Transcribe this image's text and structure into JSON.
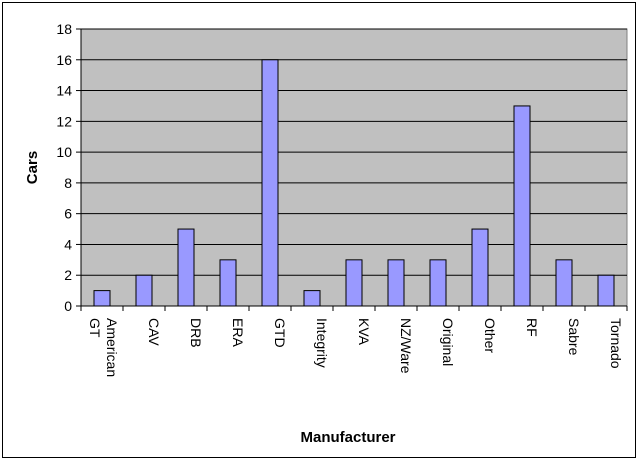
{
  "chart_data": {
    "type": "bar",
    "title": "",
    "xlabel": "Manufacturer",
    "ylabel": "Cars",
    "categories": [
      "American GT",
      "CAV",
      "DRB",
      "ERA",
      "GTD",
      "Integrity",
      "KVA",
      "NZ/Ware",
      "Original",
      "Other",
      "RF",
      "Sabre",
      "Tornado"
    ],
    "values": [
      1,
      2,
      5,
      3,
      16,
      1,
      3,
      3,
      3,
      5,
      13,
      3,
      2
    ],
    "ylim": [
      0,
      18
    ],
    "yticks": [
      0,
      2,
      4,
      6,
      8,
      10,
      12,
      14,
      16,
      18
    ],
    "grid": true,
    "legend": "none",
    "colors": {
      "plot_background": "#c0c0c0",
      "bar_fill": "#9999ff",
      "bar_stroke": "#000000",
      "gridline": "#000000"
    }
  }
}
